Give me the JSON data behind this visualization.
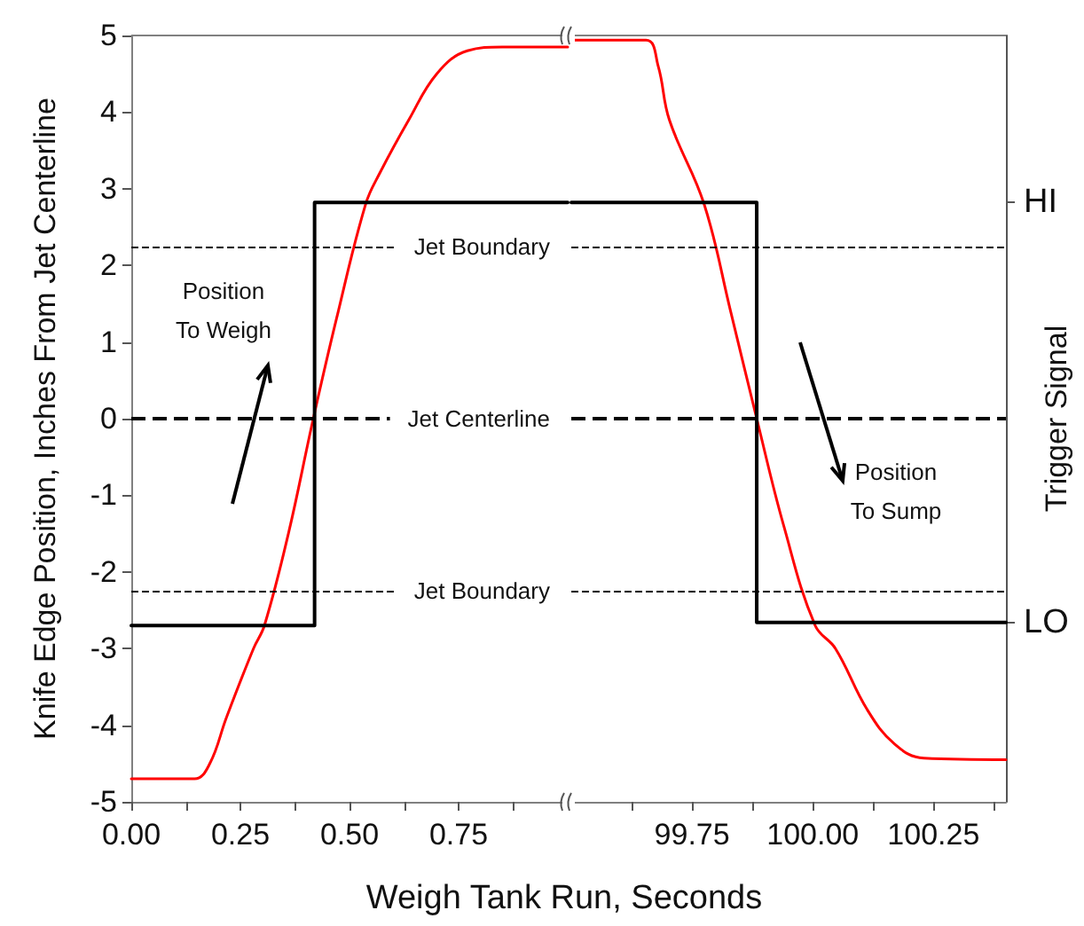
{
  "chart_data": [
    {
      "type": "line",
      "xlabel": "Weigh Tank Run, Seconds",
      "ylabel": "Knife Edge Position, Inches From Jet Centerline",
      "xlim": [
        0,
        1
      ],
      "xticks": [
        {
          "value": 0,
          "label": "0.00"
        },
        {
          "value": 0.125,
          "label": null
        },
        {
          "value": 0.25,
          "label": "0.25"
        },
        {
          "value": 0.375,
          "label": null
        },
        {
          "value": 0.5,
          "label": "0.50"
        },
        {
          "value": 0.625,
          "label": null
        },
        {
          "value": 0.75,
          "label": "0.75"
        },
        {
          "value": 0.875,
          "label": null
        },
        {
          "value": 1,
          "label": null
        }
      ],
      "ylim": [
        -5,
        5
      ],
      "yticks": [
        -5,
        -4,
        -3,
        -2,
        -1,
        0,
        1,
        2,
        3,
        4,
        5
      ],
      "grid": false,
      "marker": "none",
      "series": [
        {
          "color": "#ff0000",
          "x": [
            0,
            0.145,
            0.18,
            0.218,
            0.28,
            0.305,
            0.36,
            0.417,
            0.47,
            0.537,
            0.569,
            0.636,
            0.7,
            0.77,
            0.85,
            1
          ],
          "values": [
            -4.7,
            -4.7,
            -4.5,
            -3.9,
            -3.0,
            -2.7,
            -1.5,
            0,
            1.3,
            2.8,
            3.2,
            3.9,
            4.5,
            4.8,
            4.85,
            4.85
          ]
        },
        {
          "color": "#000000",
          "x": [
            0,
            0.42,
            0.42,
            1
          ],
          "values": [
            -2.7,
            -2.7,
            2.82,
            2.82
          ]
        }
      ],
      "ref_lines": [
        {
          "axis": "y",
          "value": 2.25,
          "label": "Jet Boundary",
          "color": "#000000",
          "line_style": "dashed"
        },
        {
          "axis": "y",
          "value": 0,
          "label": "Jet Centerline",
          "color": "#000000",
          "line_style": "dashed"
        },
        {
          "axis": "y",
          "value": -2.25,
          "label": "Jet Boundary",
          "color": "#000000",
          "line_style": "dashed"
        }
      ],
      "annotations": [
        "Position\nTo Weigh"
      ]
    },
    {
      "type": "line",
      "y2label": "Trigger Signal",
      "xlim": [
        99.5,
        100.4
      ],
      "xticks": [
        {
          "value": 99.5,
          "label": null
        },
        {
          "value": 99.625,
          "label": null
        },
        {
          "value": 99.75,
          "label": "99.75"
        },
        {
          "value": 99.875,
          "label": null
        },
        {
          "value": 100,
          "label": "100.00"
        },
        {
          "value": 100.125,
          "label": null
        },
        {
          "value": 100.25,
          "label": "100.25"
        },
        {
          "value": 100.375,
          "label": null
        }
      ],
      "ylim": [
        -5,
        5
      ],
      "grid": false,
      "marker": "none",
      "series": [
        {
          "color": "#ff0000",
          "x": [
            99.5,
            99.655,
            99.68,
            99.703,
            99.775,
            99.83,
            99.884,
            99.94,
            100.005,
            100.047,
            100.113,
            100.17,
            100.23,
            100.4
          ],
          "values": [
            4.94,
            4.94,
            4.6,
            3.9,
            2.8,
            1.4,
            0,
            -1.4,
            -2.7,
            -3.0,
            -3.8,
            -4.25,
            -4.43,
            -4.45
          ]
        },
        {
          "color": "#000000",
          "x": [
            99.5,
            99.884,
            99.884,
            100.4
          ],
          "values": [
            2.82,
            2.82,
            -2.66,
            -2.66
          ]
        }
      ],
      "ref_lines": [
        {
          "axis": "y",
          "value": 2.25,
          "label": null,
          "color": "#000000",
          "line_style": "dashed"
        },
        {
          "axis": "y",
          "value": 0,
          "label": null,
          "color": "#000000",
          "line_style": "dashed"
        },
        {
          "axis": "y",
          "value": -2.25,
          "label": null,
          "color": "#000000",
          "line_style": "dashed"
        }
      ],
      "annotations": [
        "Position\nTo Sump",
        "HI",
        "LO"
      ]
    }
  ]
}
